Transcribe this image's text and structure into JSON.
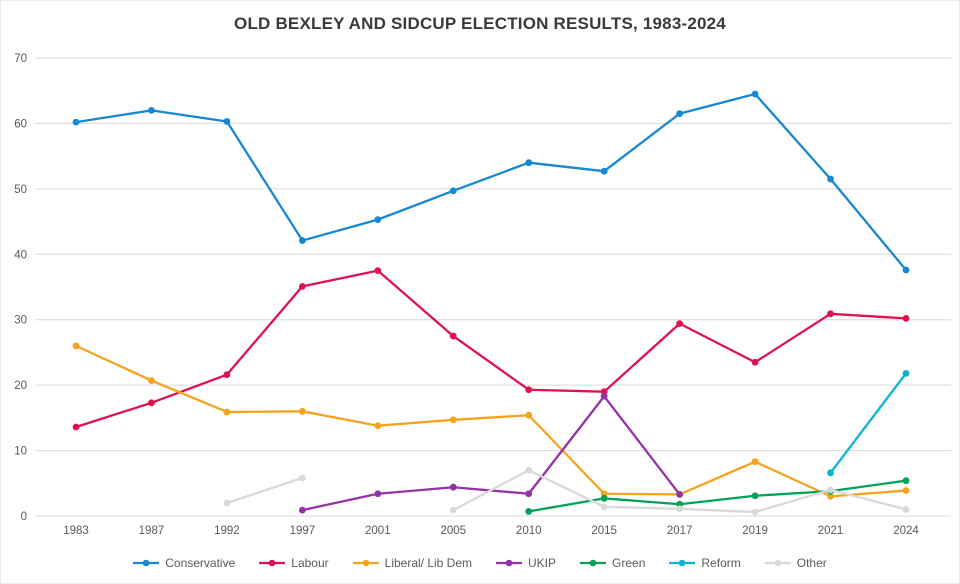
{
  "chart_data": {
    "type": "line",
    "title": "OLD BEXLEY AND SIDCUP ELECTION RESULTS, 1983-2024",
    "xlabel": "",
    "ylabel": "",
    "ylim": [
      0,
      70
    ],
    "ytick_step": 10,
    "grid": "horizontal",
    "grid_color": "#d9d9d9",
    "axis_text_color": "#595959",
    "legend_position": "bottom",
    "categories": [
      "1983",
      "1987",
      "1992",
      "1997",
      "2001",
      "2005",
      "2010",
      "2015",
      "2017",
      "2019",
      "2021",
      "2024"
    ],
    "series": [
      {
        "name": "Conservative",
        "color": "#1787d2",
        "values": [
          60.2,
          62.0,
          60.3,
          42.1,
          45.3,
          49.7,
          54.0,
          52.7,
          61.5,
          64.5,
          51.5,
          37.6
        ]
      },
      {
        "name": "Labour",
        "color": "#e0114f",
        "values": [
          13.6,
          17.3,
          21.6,
          35.1,
          37.5,
          27.5,
          19.3,
          19.0,
          29.4,
          23.5,
          30.9,
          30.2
        ]
      },
      {
        "name": "Liberal/ Lib Dem",
        "color": "#f5a31f",
        "values": [
          26.0,
          20.7,
          15.9,
          16.0,
          13.8,
          14.7,
          15.4,
          3.4,
          3.3,
          8.3,
          3.0,
          3.9
        ]
      },
      {
        "name": "UKIP",
        "color": "#9333a6",
        "values": [
          null,
          null,
          null,
          0.9,
          3.4,
          4.4,
          3.4,
          18.3,
          3.3,
          null,
          null,
          null
        ]
      },
      {
        "name": "Green",
        "color": "#00a256",
        "values": [
          null,
          null,
          null,
          null,
          null,
          null,
          0.7,
          2.7,
          1.8,
          3.1,
          3.8,
          5.4
        ]
      },
      {
        "name": "Reform",
        "color": "#0cb5cf",
        "values": [
          null,
          null,
          null,
          null,
          null,
          null,
          null,
          null,
          null,
          null,
          6.6,
          21.8
        ]
      },
      {
        "name": "Other",
        "color": "#d9d9d9",
        "values": [
          null,
          null,
          2.0,
          5.8,
          null,
          0.9,
          7.0,
          1.4,
          1.1,
          0.6,
          4.0,
          1.0
        ]
      }
    ]
  }
}
